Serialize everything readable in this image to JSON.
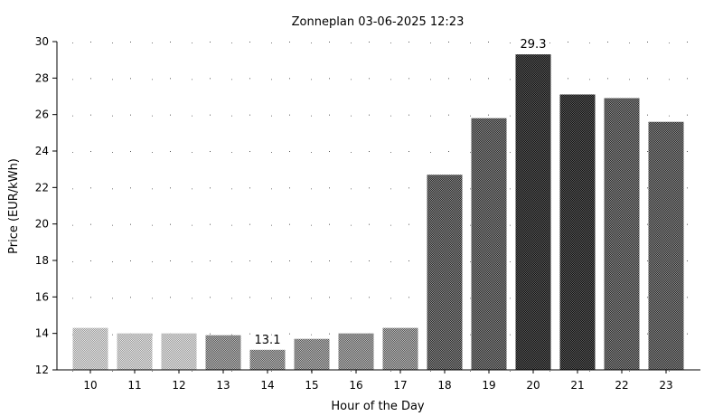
{
  "chart_data": {
    "type": "bar",
    "title": "Zonneplan 03-06-2025 12:23",
    "xlabel": "Hour of the Day",
    "ylabel": "Price (EUR/kWh)",
    "categories": [
      "10",
      "11",
      "12",
      "13",
      "14",
      "15",
      "16",
      "17",
      "18",
      "19",
      "20",
      "21",
      "22",
      "23"
    ],
    "values": [
      14.3,
      14.0,
      14.0,
      13.9,
      13.1,
      13.7,
      14.0,
      14.3,
      22.7,
      25.8,
      29.3,
      27.1,
      26.9,
      25.6
    ],
    "ylim": [
      12,
      30
    ],
    "yticks": [
      12,
      14,
      16,
      18,
      20,
      22,
      24,
      26,
      28,
      30
    ],
    "grid": "dotted",
    "legend": "none",
    "annotations": [
      {
        "category": "14",
        "text": "13.1"
      },
      {
        "category": "20",
        "text": "29.3"
      }
    ],
    "colors": {
      "light": "#c4c4c4",
      "medium": "#8a8a8a",
      "dark": "#555555",
      "darkest": "#333333",
      "axis": "#000000"
    }
  }
}
